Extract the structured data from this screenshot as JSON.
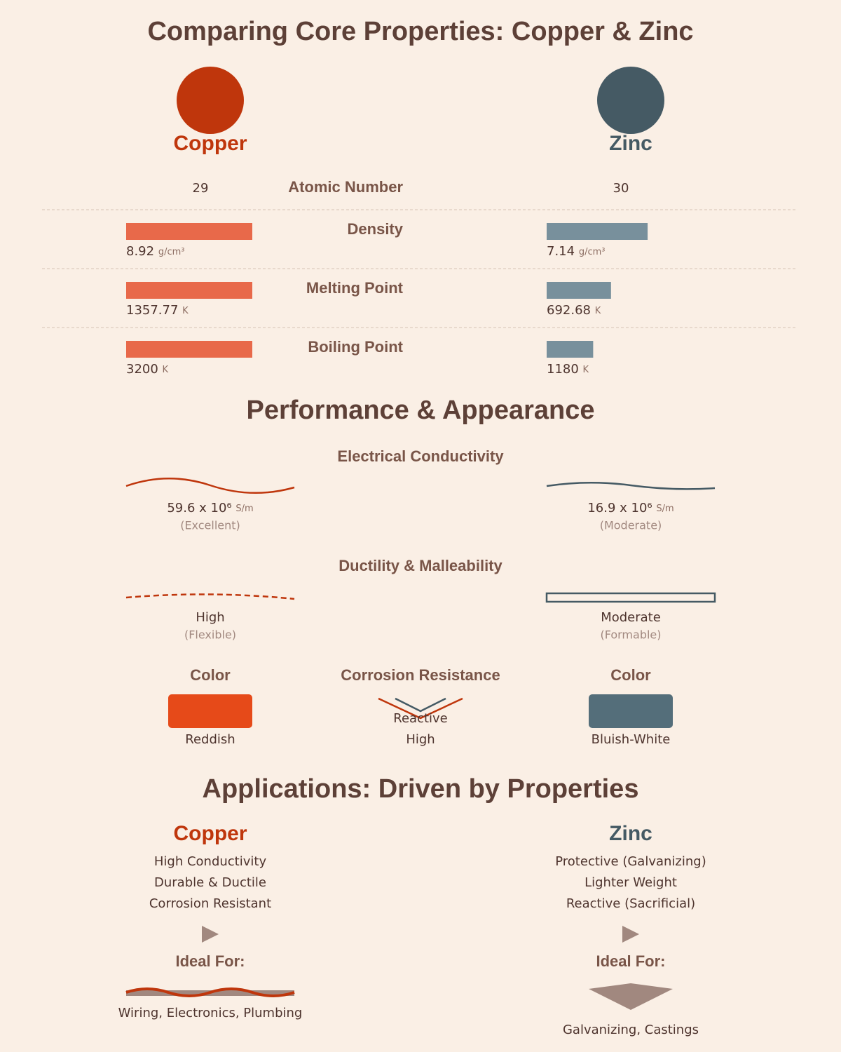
{
  "title": "Comparing Core Properties: Copper & Zinc",
  "metals": [
    {
      "name": "Copper",
      "color": "#bf360c",
      "bar_color": "#e8694a",
      "swatch_color": "#e64a19"
    },
    {
      "name": "Zinc",
      "color": "#455a64",
      "bar_color": "#78909c",
      "swatch_color": "#546e7a"
    }
  ],
  "atomic_number": {
    "label": "Atomic Number",
    "values": [
      29,
      30
    ]
  },
  "properties": [
    {
      "label": "Density",
      "unit": "g/cm³",
      "values": [
        8.92,
        7.14
      ]
    },
    {
      "label": "Melting Point",
      "unit": "K",
      "values": [
        1357.77,
        692.68
      ]
    },
    {
      "label": "Boiling Point",
      "unit": "K",
      "values": [
        3200,
        1180
      ]
    }
  ],
  "performance_title": "Performance & Appearance",
  "conductivity": {
    "label": "Electrical Conductivity",
    "unit": "S/m",
    "values": [
      "59.6 x 10⁶",
      "16.9 x 10⁶"
    ],
    "ratings": [
      "(Excellent)",
      "(Moderate)"
    ]
  },
  "ductility": {
    "label": "Ductility & Malleability",
    "values": [
      "High",
      "Moderate"
    ],
    "notes": [
      "(Flexible)",
      "(Formable)"
    ]
  },
  "color": {
    "label": "Color",
    "values": [
      "Reddish",
      "Bluish-White"
    ]
  },
  "corrosion": {
    "label": "Corrosion Resistance",
    "values": [
      "Reactive",
      "High"
    ]
  },
  "applications": {
    "title": "Applications: Driven by Properties",
    "ideal_label": "Ideal For:",
    "items": [
      {
        "traits": [
          "High Conductivity",
          "Durable & Ductile",
          "Corrosion Resistant"
        ],
        "uses": "Wiring, Electronics, Plumbing"
      },
      {
        "traits": [
          "Protective (Galvanizing)",
          "Lighter Weight",
          "Reactive (Sacrificial)"
        ],
        "uses": "Galvanizing, Castings"
      }
    ]
  }
}
